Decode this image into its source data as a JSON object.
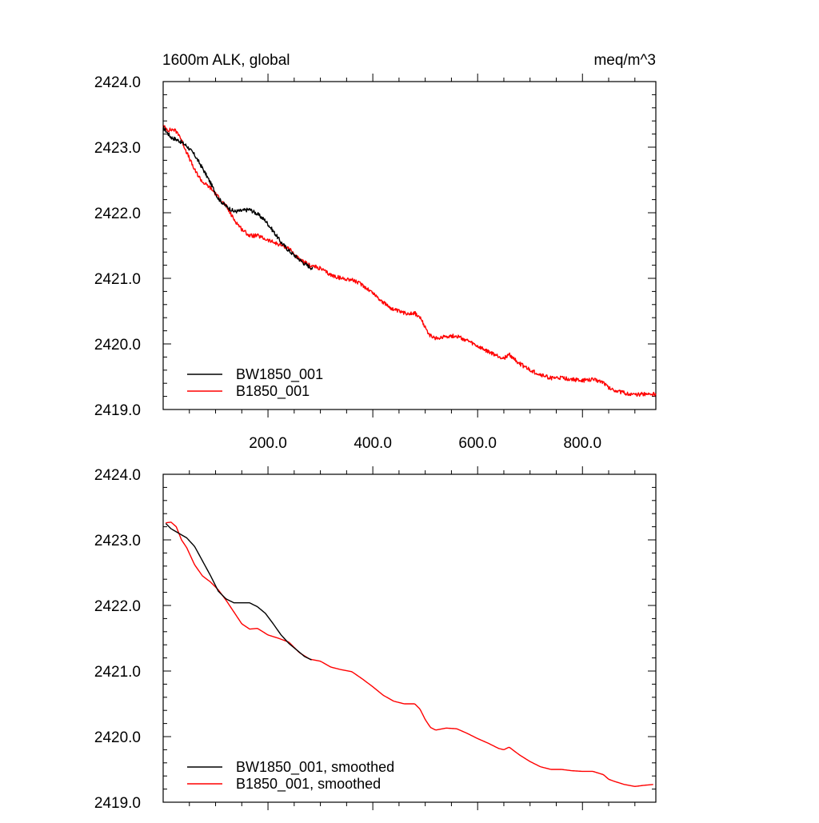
{
  "colors": {
    "black_series": "#000000",
    "red_series": "#ff0000",
    "frame": "#000000"
  },
  "chart_data": [
    {
      "type": "line",
      "id": "top",
      "title_left": "1600m ALK, global",
      "title_right": "meq/m^3",
      "xlim": [
        0,
        940
      ],
      "ylim": [
        2419.0,
        2424.0
      ],
      "x_tick_values": [
        200,
        400,
        600,
        800
      ],
      "x_tick_labels": [
        "200.0",
        "400.0",
        "600.0",
        "800.0"
      ],
      "y_tick_values": [
        2419,
        2420,
        2421,
        2422,
        2423,
        2424
      ],
      "y_tick_labels": [
        "2419.0",
        "2420.0",
        "2421.0",
        "2422.0",
        "2423.0",
        "2424.0"
      ],
      "legend": [
        "BW1850_001",
        "B1850_001"
      ],
      "noise": 0.03,
      "series": [
        {
          "name": "BW1850_001",
          "color": "#000000",
          "x": [
            0,
            15,
            30,
            45,
            60,
            75,
            90,
            105,
            120,
            135,
            150,
            165,
            180,
            195,
            210,
            225,
            240,
            255,
            270,
            285
          ],
          "y": [
            2423.3,
            2423.15,
            2423.1,
            2423.02,
            2422.88,
            2422.68,
            2422.46,
            2422.22,
            2422.1,
            2422.02,
            2422.03,
            2422.05,
            2421.98,
            2421.88,
            2421.72,
            2421.55,
            2421.42,
            2421.32,
            2421.22,
            2421.15
          ]
        },
        {
          "name": "B1850_001",
          "color": "#ff0000",
          "x": [
            0,
            10,
            20,
            30,
            45,
            60,
            75,
            90,
            105,
            120,
            135,
            150,
            165,
            180,
            200,
            220,
            240,
            260,
            280,
            300,
            320,
            340,
            360,
            380,
            400,
            420,
            440,
            460,
            480,
            490,
            500,
            510,
            520,
            540,
            560,
            580,
            600,
            620,
            640,
            650,
            660,
            680,
            700,
            720,
            740,
            760,
            780,
            800,
            820,
            840,
            850,
            860,
            880,
            900,
            920,
            940
          ],
          "y": [
            2423.32,
            2423.26,
            2423.27,
            2423.2,
            2422.92,
            2422.65,
            2422.47,
            2422.38,
            2422.24,
            2422.1,
            2421.9,
            2421.75,
            2421.65,
            2421.65,
            2421.58,
            2421.52,
            2421.46,
            2421.28,
            2421.2,
            2421.15,
            2421.05,
            2421.0,
            2420.98,
            2420.9,
            2420.78,
            2420.63,
            2420.52,
            2420.47,
            2420.47,
            2420.4,
            2420.25,
            2420.12,
            2420.08,
            2420.12,
            2420.12,
            2420.05,
            2419.96,
            2419.88,
            2419.81,
            2419.78,
            2419.84,
            2419.7,
            2419.6,
            2419.53,
            2419.48,
            2419.48,
            2419.46,
            2419.44,
            2419.46,
            2419.42,
            2419.33,
            2419.3,
            2419.25,
            2419.22,
            2419.24,
            2419.23
          ]
        }
      ]
    },
    {
      "type": "line",
      "id": "bottom",
      "xlim": [
        0,
        940
      ],
      "ylim": [
        2419.0,
        2424.0
      ],
      "x_tick_values": [
        200,
        400,
        600,
        800
      ],
      "x_tick_labels": [],
      "y_tick_values": [
        2419,
        2420,
        2421,
        2422,
        2423,
        2424
      ],
      "y_tick_labels": [
        "2419.0",
        "2420.0",
        "2421.0",
        "2422.0",
        "2423.0",
        "2424.0"
      ],
      "legend": [
        "BW1850_001, smoothed",
        "B1850_001, smoothed"
      ],
      "noise": 0,
      "series": [
        {
          "name": "BW1850_001, smoothed",
          "color": "#000000",
          "x": [
            5,
            15,
            30,
            45,
            60,
            75,
            90,
            105,
            120,
            135,
            150,
            165,
            180,
            195,
            210,
            225,
            240,
            255,
            270,
            283
          ],
          "y": [
            2423.25,
            2423.17,
            2423.1,
            2423.03,
            2422.9,
            2422.68,
            2422.46,
            2422.22,
            2422.1,
            2422.04,
            2422.04,
            2422.04,
            2421.98,
            2421.88,
            2421.72,
            2421.55,
            2421.42,
            2421.32,
            2421.22,
            2421.17
          ]
        },
        {
          "name": "B1850_001, smoothed",
          "color": "#ff0000",
          "x": [
            5,
            15,
            25,
            35,
            45,
            60,
            75,
            90,
            105,
            120,
            135,
            150,
            165,
            180,
            200,
            220,
            240,
            260,
            280,
            300,
            320,
            340,
            360,
            380,
            400,
            420,
            440,
            460,
            480,
            490,
            500,
            510,
            520,
            540,
            560,
            580,
            600,
            620,
            640,
            650,
            660,
            680,
            700,
            720,
            740,
            760,
            780,
            800,
            820,
            840,
            850,
            860,
            880,
            900,
            920,
            935
          ],
          "y": [
            2423.26,
            2423.27,
            2423.2,
            2423.0,
            2422.88,
            2422.62,
            2422.45,
            2422.36,
            2422.24,
            2422.08,
            2421.9,
            2421.72,
            2421.64,
            2421.65,
            2421.55,
            2421.5,
            2421.44,
            2421.28,
            2421.18,
            2421.15,
            2421.06,
            2421.02,
            2420.99,
            2420.88,
            2420.76,
            2420.63,
            2420.54,
            2420.5,
            2420.5,
            2420.42,
            2420.26,
            2420.14,
            2420.1,
            2420.13,
            2420.12,
            2420.05,
            2419.97,
            2419.9,
            2419.82,
            2419.8,
            2419.84,
            2419.72,
            2419.62,
            2419.54,
            2419.5,
            2419.5,
            2419.48,
            2419.47,
            2419.47,
            2419.42,
            2419.35,
            2419.32,
            2419.27,
            2419.24,
            2419.26,
            2419.27
          ]
        }
      ]
    }
  ]
}
